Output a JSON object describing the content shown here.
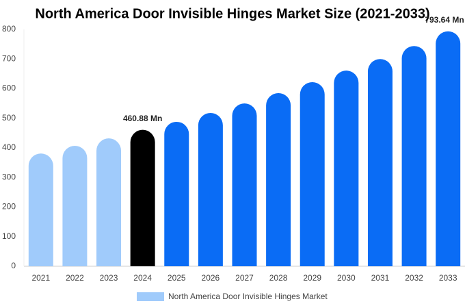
{
  "chart_data": {
    "type": "bar",
    "title": "North America Door Invisible Hinges Market Size (2021-2033)",
    "categories": [
      "2021",
      "2022",
      "2023",
      "2024",
      "2025",
      "2026",
      "2027",
      "2028",
      "2029",
      "2030",
      "2031",
      "2032",
      "2033"
    ],
    "series": [
      {
        "name": "North America Door Invisible Hinges Market",
        "color": "#a0cbfb",
        "colors": [
          "#a0cbfb",
          "#a0cbfb",
          "#a0cbfb",
          "#000000",
          "#0a6cf5",
          "#0a6cf5",
          "#0a6cf5",
          "#0a6cf5",
          "#0a6cf5",
          "#0a6cf5",
          "#0a6cf5",
          "#0a6cf5",
          "#0a6cf5"
        ],
        "values": [
          381,
          407,
          432,
          460.88,
          488,
          518,
          550,
          585,
          622,
          661,
          700,
          744,
          793.64
        ],
        "value_labels": [
          null,
          null,
          null,
          "460.88 Mn",
          null,
          null,
          null,
          null,
          null,
          null,
          null,
          null,
          "793.64 Mn"
        ]
      }
    ],
    "ylim": [
      0,
      800
    ],
    "yticks": [
      0,
      100,
      200,
      300,
      400,
      500,
      600,
      700,
      800
    ],
    "grid": false,
    "legend": "bottom"
  }
}
